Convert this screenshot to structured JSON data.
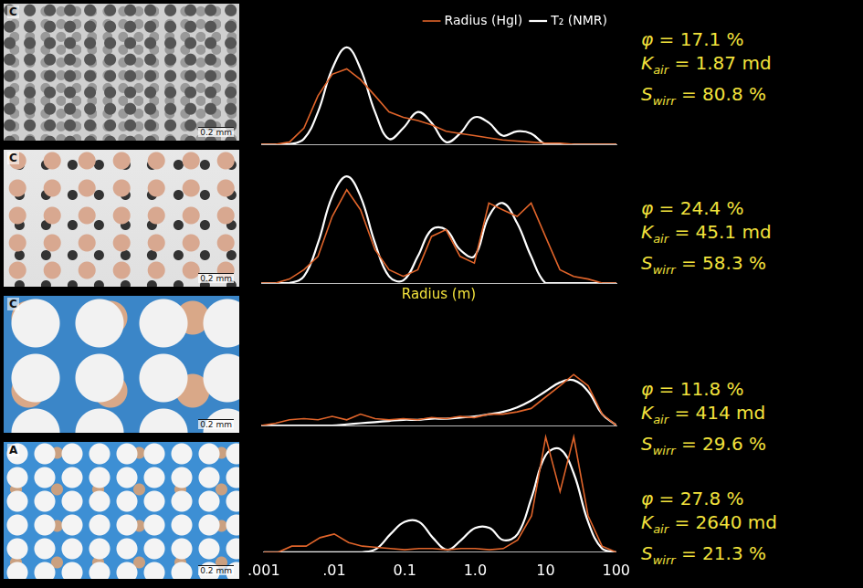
{
  "chart_data": [
    {
      "type": "line",
      "log": "x",
      "legend": "top",
      "tick_labels": false,
      "micrograph": {
        "label": "C",
        "scale": "0.2 mm"
      },
      "x": [
        0.001,
        0.0016,
        0.0025,
        0.004,
        0.0063,
        0.01,
        0.016,
        0.025,
        0.04,
        0.063,
        0.1,
        0.16,
        0.25,
        0.4,
        0.63,
        1,
        1.6,
        2.5,
        4,
        6.3,
        10,
        16,
        25,
        40,
        63,
        100
      ],
      "xlim": [
        0.001,
        100
      ],
      "xticks": [
        {
          "value": 0.001,
          "label": ".001"
        },
        {
          "value": 0.01,
          "label": ".01"
        },
        0.1,
        {
          "value": 1,
          "label": "1.0"
        },
        10,
        100
      ],
      "ylim": [
        0,
        1
      ],
      "series": [
        {
          "name": "Radius (Hgl)",
          "color": "#e0642a",
          "values": [
            0,
            0,
            0.02,
            0.15,
            0.45,
            0.65,
            0.7,
            0.6,
            0.45,
            0.3,
            0.25,
            0.22,
            0.18,
            0.12,
            0.1,
            0.08,
            0.06,
            0.04,
            0.03,
            0.02,
            0.01,
            0.01,
            0,
            0,
            0,
            0
          ]
        },
        {
          "name": "T₂ (NMR)",
          "color": "#ffffff",
          "values": [
            0,
            0,
            0,
            0.05,
            0.3,
            0.7,
            0.9,
            0.7,
            0.3,
            0.05,
            0.15,
            0.3,
            0.2,
            0.02,
            0.1,
            0.25,
            0.2,
            0.08,
            0.12,
            0.1,
            0,
            0,
            0,
            0,
            0,
            0
          ]
        }
      ],
      "properties": [
        {
          "symbol": "φ",
          "relation": "=",
          "value": 17.1,
          "unit": "%"
        },
        {
          "symbol": "K",
          "subscript": "air",
          "relation": "=",
          "value": 1.87,
          "unit": "md"
        },
        {
          "symbol": "S",
          "subscript": "wirr",
          "relation": "=",
          "value": 80.8,
          "unit": "%"
        }
      ]
    },
    {
      "type": "line",
      "log": "x",
      "tick_labels": false,
      "x_label": "Radius (m)",
      "micrograph": {
        "label": "C",
        "scale": "0.2 mm"
      },
      "x": [
        0.001,
        0.0016,
        0.0025,
        0.004,
        0.0063,
        0.01,
        0.016,
        0.025,
        0.04,
        0.063,
        0.1,
        0.16,
        0.25,
        0.4,
        0.63,
        1,
        1.6,
        2.5,
        4,
        6.3,
        10,
        16,
        25,
        40,
        63,
        100
      ],
      "xlim": [
        0.001,
        100
      ],
      "xticks": [
        {
          "value": 0.001,
          "label": ".001"
        },
        {
          "value": 0.01,
          "label": ".01"
        },
        0.1,
        {
          "value": 1,
          "label": "1.0"
        },
        10,
        100
      ],
      "ylim": [
        0,
        1
      ],
      "series": [
        {
          "name": "Radius (Hgl)",
          "color": "#e0642a",
          "values": [
            0,
            0,
            0.03,
            0.1,
            0.2,
            0.5,
            0.7,
            0.55,
            0.25,
            0.1,
            0.05,
            0.1,
            0.35,
            0.4,
            0.2,
            0.15,
            0.6,
            0.55,
            0.5,
            0.6,
            0.35,
            0.1,
            0.05,
            0.03,
            0,
            0
          ]
        },
        {
          "name": "T₂ (NMR)",
          "color": "#ffffff",
          "values": [
            0,
            0,
            0,
            0.05,
            0.3,
            0.65,
            0.8,
            0.65,
            0.3,
            0.05,
            0.02,
            0.2,
            0.4,
            0.4,
            0.25,
            0.2,
            0.5,
            0.6,
            0.45,
            0.2,
            0,
            0,
            0,
            0,
            0,
            0
          ]
        }
      ],
      "properties": [
        {
          "symbol": "φ",
          "relation": "=",
          "value": 24.4,
          "unit": "%"
        },
        {
          "symbol": "K",
          "subscript": "air",
          "relation": "=",
          "value": 45.1,
          "unit": "md"
        },
        {
          "symbol": "S",
          "subscript": "wirr",
          "relation": "=",
          "value": 58.3,
          "unit": "%"
        }
      ]
    },
    {
      "type": "line",
      "log": "x",
      "tick_labels": false,
      "micrograph": {
        "label": "C",
        "scale": "0.2 mm"
      },
      "x": [
        0.001,
        0.0016,
        0.0025,
        0.004,
        0.0063,
        0.01,
        0.016,
        0.025,
        0.04,
        0.063,
        0.1,
        0.16,
        0.25,
        0.4,
        0.63,
        1,
        1.6,
        2.5,
        4,
        6.3,
        10,
        16,
        25,
        40,
        63,
        100
      ],
      "xlim": [
        0.001,
        100
      ],
      "xticks": [
        {
          "value": 0.001,
          "label": ".001"
        },
        {
          "value": 0.01,
          "label": ".01"
        },
        0.1,
        {
          "value": 1,
          "label": "1.0"
        },
        10,
        100
      ],
      "ylim": [
        0,
        1
      ],
      "series": [
        {
          "name": "Radius (Hgl)",
          "color": "#e0642a",
          "values": [
            0,
            0.02,
            0.05,
            0.06,
            0.05,
            0.08,
            0.05,
            0.1,
            0.06,
            0.05,
            0.06,
            0.05,
            0.07,
            0.06,
            0.08,
            0.07,
            0.1,
            0.1,
            0.12,
            0.15,
            0.25,
            0.35,
            0.45,
            0.35,
            0.1,
            0
          ]
        },
        {
          "name": "T₂ (NMR)",
          "color": "#ffffff",
          "values": [
            0,
            0,
            0,
            0,
            0,
            0,
            0.01,
            0.02,
            0.03,
            0.04,
            0.05,
            0.05,
            0.06,
            0.06,
            0.07,
            0.08,
            0.1,
            0.12,
            0.16,
            0.22,
            0.3,
            0.38,
            0.4,
            0.3,
            0.1,
            0
          ]
        }
      ],
      "properties": [
        {
          "symbol": "φ",
          "relation": "=",
          "value": 11.8,
          "unit": "%"
        },
        {
          "symbol": "K",
          "subscript": "air",
          "relation": "=",
          "value": 414,
          "unit": "md"
        },
        {
          "symbol": "S",
          "subscript": "wirr",
          "relation": "=",
          "value": 29.6,
          "unit": "%"
        }
      ]
    },
    {
      "type": "line",
      "log": "x",
      "tick_labels": "x",
      "micrograph": {
        "label": "A",
        "scale": "0.2 mm"
      },
      "x": [
        0.001,
        0.0016,
        0.0025,
        0.004,
        0.0063,
        0.01,
        0.016,
        0.025,
        0.04,
        0.063,
        0.1,
        0.16,
        0.25,
        0.4,
        0.63,
        1,
        1.6,
        2.5,
        4,
        6.3,
        10,
        16,
        25,
        40,
        63,
        100
      ],
      "xlim": [
        0.001,
        100
      ],
      "xticks": [
        {
          "value": 0.001,
          "label": ".001"
        },
        {
          "value": 0.01,
          "label": ".01"
        },
        0.1,
        {
          "value": 1,
          "label": "1.0"
        },
        10,
        100
      ],
      "ylim": [
        0,
        1
      ],
      "series": [
        {
          "name": "Radius (Hgl)",
          "color": "#e0642a",
          "values": [
            0,
            0,
            0.05,
            0.05,
            0.12,
            0.15,
            0.08,
            0.05,
            0.04,
            0.03,
            0.02,
            0.03,
            0.03,
            0.02,
            0.03,
            0.03,
            0.02,
            0.03,
            0.1,
            0.3,
            0.95,
            0.5,
            0.95,
            0.3,
            0.05,
            0
          ]
        },
        {
          "name": "T₂ (NMR)",
          "color": "#ffffff",
          "values": [
            0,
            0,
            0,
            0,
            0,
            0,
            0,
            0,
            0.03,
            0.15,
            0.25,
            0.25,
            0.12,
            0.02,
            0.1,
            0.2,
            0.2,
            0.1,
            0.15,
            0.45,
            0.8,
            0.85,
            0.65,
            0.25,
            0.03,
            0
          ]
        }
      ],
      "properties": [
        {
          "symbol": "φ",
          "relation": "=",
          "value": 27.8,
          "unit": "%"
        },
        {
          "symbol": "K",
          "subscript": "air",
          "relation": "=",
          "value": 2640,
          "unit": "md"
        },
        {
          "symbol": "S",
          "subscript": "wirr",
          "relation": "=",
          "value": 21.3,
          "unit": "%"
        }
      ]
    }
  ]
}
